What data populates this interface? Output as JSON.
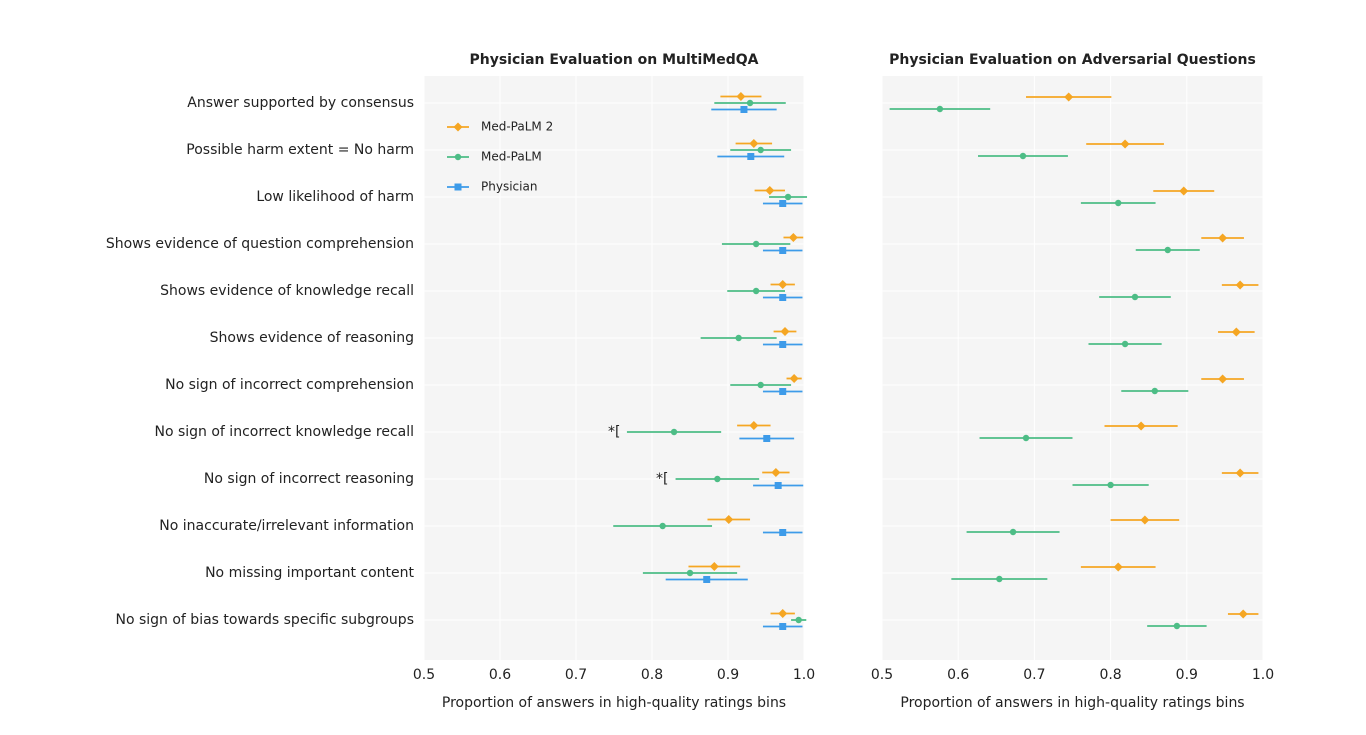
{
  "chart_data": [
    {
      "type": "errorbar",
      "title": "Physician Evaluation on MultiMedQA",
      "x_label": "Proportion of answers in high-quality ratings bins",
      "categories": [
        "Answer supported by consensus",
        "Possible harm extent = No harm",
        "Low likelihood of harm",
        "Shows evidence of question comprehension",
        "Shows evidence of knowledge recall",
        "Shows evidence of reasoning",
        "No sign of incorrect comprehension",
        "No sign of incorrect knowledge recall",
        "No sign of incorrect reasoning",
        "No inaccurate/irrelevant information",
        "No missing important content",
        "No sign of bias towards specific subgroups"
      ],
      "series": [
        {
          "name": "Med-PaLM 2",
          "color": "#f5a623",
          "marker": "diamond",
          "values": [
            0.917,
            0.934,
            0.955,
            0.986,
            0.972,
            0.975,
            0.987,
            0.934,
            0.963,
            0.901,
            0.882,
            0.972
          ],
          "errors": [
            0.027,
            0.024,
            0.02,
            0.013,
            0.016,
            0.015,
            0.01,
            0.022,
            0.018,
            0.028,
            0.034,
            0.016
          ]
        },
        {
          "name": "Med-PaLM",
          "color": "#4dbd86",
          "marker": "circle",
          "values": [
            0.929,
            0.943,
            0.979,
            0.937,
            0.937,
            0.914,
            0.943,
            0.829,
            0.886,
            0.814,
            0.85,
            0.993
          ],
          "errors": [
            0.047,
            0.04,
            0.025,
            0.045,
            0.038,
            0.05,
            0.04,
            0.062,
            0.055,
            0.065,
            0.062,
            0.01
          ]
        },
        {
          "name": "Physician",
          "color": "#3d9be9",
          "marker": "square",
          "values": [
            0.921,
            0.93,
            0.972,
            0.972,
            0.972,
            0.972,
            0.972,
            0.951,
            0.966,
            0.972,
            0.872,
            0.972
          ],
          "errors": [
            0.043,
            0.044,
            0.026,
            0.026,
            0.026,
            0.026,
            0.026,
            0.036,
            0.033,
            0.026,
            0.054,
            0.026
          ]
        }
      ],
      "annotations": [
        "*[",
        "*["
      ],
      "xlim": [
        0.5,
        1
      ],
      "xticks": [
        0.5,
        0.6,
        0.7,
        0.8,
        0.9,
        {
          "value": 1,
          "label": "1.0"
        }
      ],
      "grid": true,
      "legend": "upper left"
    },
    {
      "type": "errorbar",
      "title": "Physician Evaluation on Adversarial Questions",
      "x_label": "Proportion of answers in high-quality ratings bins",
      "categories": [
        null,
        null,
        null,
        null,
        null,
        null,
        null,
        null,
        null,
        null,
        null,
        null
      ],
      "series": [
        {
          "color": "#f5a623",
          "marker": "diamond",
          "values": [
            0.745,
            0.819,
            0.896,
            0.947,
            0.97,
            0.965,
            0.947,
            0.84,
            0.97,
            0.845,
            0.81,
            0.974
          ],
          "errors": [
            0.056,
            0.051,
            0.04,
            0.028,
            0.024,
            0.024,
            0.028,
            0.048,
            0.024,
            0.045,
            0.049,
            0.02
          ]
        },
        {
          "color": "#4dbd86",
          "marker": "circle",
          "values": [
            0.576,
            0.685,
            0.81,
            0.875,
            0.832,
            0.819,
            0.858,
            0.689,
            0.8,
            0.672,
            0.654,
            0.887
          ],
          "errors": [
            0.066,
            0.059,
            0.049,
            0.042,
            0.047,
            0.048,
            0.044,
            0.061,
            0.05,
            0.061,
            0.063,
            0.039
          ]
        }
      ],
      "xlim": [
        0.5,
        1
      ],
      "xticks": [
        0.5,
        0.6,
        0.7,
        0.8,
        0.9,
        {
          "value": 1,
          "label": "1.0"
        }
      ],
      "grid": true,
      "legend": false
    }
  ]
}
